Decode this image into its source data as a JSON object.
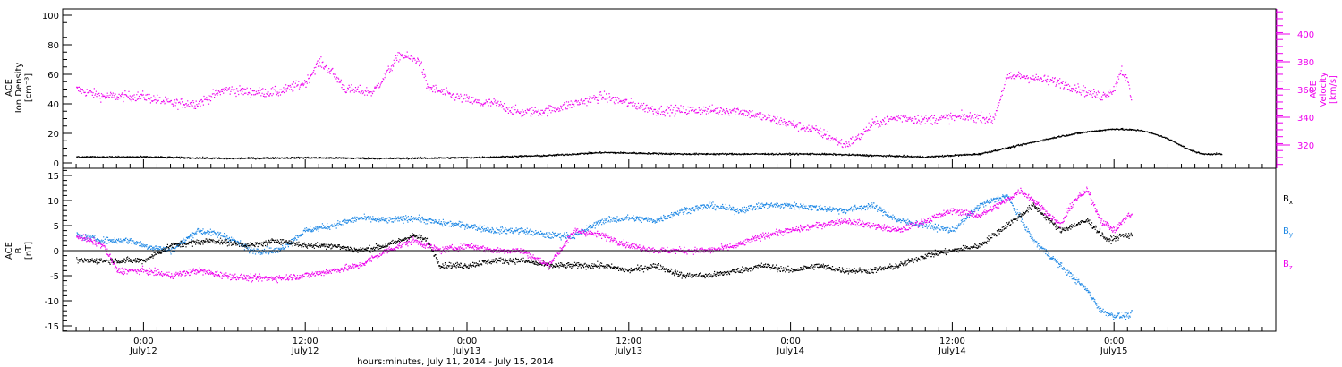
{
  "colors": {
    "black": "#000000",
    "magenta": "#ee00ee",
    "blue": "#1e88e5"
  },
  "chart_data": [
    {
      "type": "scatter",
      "panel": "top",
      "ylabel_left": [
        "ACE",
        "Ion Density",
        "[cm⁻³]"
      ],
      "ylabel_right": [
        "ACE",
        "Velocity",
        "[km/s]"
      ],
      "ylim_left": [
        0,
        100
      ],
      "yticks_left": [
        "0",
        "20",
        "40",
        "60",
        "80",
        "100"
      ],
      "ylim_right": [
        305,
        417
      ],
      "yticks_right": [
        "320",
        "340",
        "360",
        "380",
        "400"
      ],
      "x_range_hours": [
        -6,
        84
      ],
      "series": [
        {
          "axis": "left",
          "color": "#000000",
          "points": [
            [
              -5,
              4
            ],
            [
              0,
              4
            ],
            [
              6,
              3
            ],
            [
              12,
              3.5
            ],
            [
              18,
              3
            ],
            [
              24,
              3.5
            ],
            [
              30,
              5
            ],
            [
              34,
              7
            ],
            [
              40,
              6
            ],
            [
              46,
              6
            ],
            [
              50,
              6
            ],
            [
              54,
              5
            ],
            [
              58,
              4
            ],
            [
              62,
              6
            ],
            [
              64,
              10
            ],
            [
              66,
              14
            ],
            [
              68,
              18
            ],
            [
              70,
              21
            ],
            [
              72,
              23
            ],
            [
              74,
              22
            ],
            [
              75.5,
              18
            ],
            [
              76.5,
              14
            ],
            [
              77.5,
              9
            ],
            [
              78.5,
              6
            ],
            [
              80,
              6
            ]
          ]
        },
        {
          "axis": "right",
          "color": "#ee00ee",
          "points": [
            [
              -5,
              360
            ],
            [
              -3,
              355
            ],
            [
              0,
              355
            ],
            [
              2,
              350
            ],
            [
              4,
              350
            ],
            [
              6,
              360
            ],
            [
              8,
              358
            ],
            [
              10,
              358
            ],
            [
              12,
              365
            ],
            [
              13,
              380
            ],
            [
              14,
              372
            ],
            [
              15,
              360
            ],
            [
              17,
              358
            ],
            [
              19,
              385
            ],
            [
              20.5,
              380
            ],
            [
              21,
              362
            ],
            [
              23,
              355
            ],
            [
              25,
              350
            ],
            [
              26,
              350
            ],
            [
              28,
              343
            ],
            [
              30,
              345
            ],
            [
              32,
              350
            ],
            [
              34,
              355
            ],
            [
              36,
              350
            ],
            [
              38,
              345
            ],
            [
              40,
              345
            ],
            [
              42,
              345
            ],
            [
              44,
              345
            ],
            [
              46,
              340
            ],
            [
              48,
              335
            ],
            [
              50,
              330
            ],
            [
              51,
              325
            ],
            [
              52,
              320
            ],
            [
              53,
              325
            ],
            [
              54,
              335
            ],
            [
              56,
              340
            ],
            [
              58,
              338
            ],
            [
              60,
              340
            ],
            [
              62,
              340
            ],
            [
              63,
              338
            ],
            [
              64,
              368
            ],
            [
              65,
              370
            ],
            [
              66,
              368
            ],
            [
              68,
              365
            ],
            [
              70,
              358
            ],
            [
              71,
              355
            ],
            [
              72,
              360
            ],
            [
              72.5,
              375
            ],
            [
              73,
              365
            ],
            [
              73.3,
              350
            ]
          ]
        }
      ]
    },
    {
      "type": "scatter",
      "panel": "bottom",
      "ylabel_left": [
        "ACE",
        "B",
        "[nT]"
      ],
      "ylim": [
        -16,
        16
      ],
      "yticks": [
        "-15",
        "-10",
        "-5",
        "0",
        "5",
        "10",
        "15"
      ],
      "x_range_hours": [
        -6,
        84
      ],
      "xticks": [
        {
          "hours": 0,
          "time": "0:00",
          "date": "July12"
        },
        {
          "hours": 12,
          "time": "12:00",
          "date": "July12"
        },
        {
          "hours": 24,
          "time": "0:00",
          "date": "July13"
        },
        {
          "hours": 36,
          "time": "12:00",
          "date": "July13"
        },
        {
          "hours": 48,
          "time": "0:00",
          "date": "July14"
        },
        {
          "hours": 60,
          "time": "12:00",
          "date": "July14"
        },
        {
          "hours": 72,
          "time": "0:00",
          "date": "July15"
        }
      ],
      "xlabel": "hours:minutes, July 11, 2014 - July 15, 2014",
      "legend": [
        "Bx",
        "By",
        "Bz"
      ],
      "legend_position": "right",
      "series": [
        {
          "name": "Bx",
          "color": "#000000",
          "points": [
            [
              -5,
              -2
            ],
            [
              -2,
              -2
            ],
            [
              0,
              -2
            ],
            [
              2,
              1
            ],
            [
              5,
              2
            ],
            [
              8,
              1
            ],
            [
              10,
              2
            ],
            [
              12,
              1
            ],
            [
              14,
              1
            ],
            [
              16,
              0
            ],
            [
              18,
              1
            ],
            [
              20,
              3
            ],
            [
              21,
              2
            ],
            [
              22,
              -3
            ],
            [
              24,
              -3
            ],
            [
              26,
              -2
            ],
            [
              28,
              -2
            ],
            [
              30,
              -3
            ],
            [
              32,
              -3
            ],
            [
              34,
              -3
            ],
            [
              36,
              -4
            ],
            [
              38,
              -3
            ],
            [
              40,
              -5
            ],
            [
              42,
              -5
            ],
            [
              44,
              -4
            ],
            [
              46,
              -3
            ],
            [
              48,
              -4
            ],
            [
              50,
              -3
            ],
            [
              52,
              -4
            ],
            [
              54,
              -4
            ],
            [
              56,
              -3
            ],
            [
              58,
              -1
            ],
            [
              60,
              0
            ],
            [
              62,
              1
            ],
            [
              64,
              5
            ],
            [
              66,
              9
            ],
            [
              68,
              4
            ],
            [
              70,
              6
            ],
            [
              71.5,
              2
            ],
            [
              72.5,
              3
            ],
            [
              73.3,
              3
            ]
          ]
        },
        {
          "name": "By",
          "color": "#1e88e5",
          "points": [
            [
              -5,
              3
            ],
            [
              -3,
              2
            ],
            [
              -1,
              2
            ],
            [
              0,
              1
            ],
            [
              2,
              0
            ],
            [
              4,
              4
            ],
            [
              6,
              3
            ],
            [
              8,
              0
            ],
            [
              10,
              0
            ],
            [
              12,
              4
            ],
            [
              14,
              5
            ],
            [
              16,
              6.5
            ],
            [
              18,
              6
            ],
            [
              20,
              6.5
            ],
            [
              22,
              5.5
            ],
            [
              24,
              5
            ],
            [
              26,
              4
            ],
            [
              28,
              4
            ],
            [
              30,
              3
            ],
            [
              32,
              3
            ],
            [
              34,
              6
            ],
            [
              36,
              6.5
            ],
            [
              38,
              6
            ],
            [
              40,
              8
            ],
            [
              42,
              9
            ],
            [
              44,
              8
            ],
            [
              46,
              9
            ],
            [
              48,
              9
            ],
            [
              50,
              8.5
            ],
            [
              52,
              8
            ],
            [
              54,
              9
            ],
            [
              56,
              6
            ],
            [
              58,
              5
            ],
            [
              60,
              4
            ],
            [
              62,
              9
            ],
            [
              64,
              11
            ],
            [
              66,
              2
            ],
            [
              68,
              -3
            ],
            [
              70,
              -8
            ],
            [
              71,
              -12
            ],
            [
              72,
              -13
            ],
            [
              73,
              -13
            ],
            [
              73.3,
              -12.5
            ]
          ]
        },
        {
          "name": "Bz",
          "color": "#ee00ee",
          "points": [
            [
              -5,
              3
            ],
            [
              -3,
              1
            ],
            [
              -2,
              -4
            ],
            [
              0,
              -4
            ],
            [
              2,
              -5
            ],
            [
              4,
              -4
            ],
            [
              6,
              -5
            ],
            [
              8,
              -5.5
            ],
            [
              10,
              -5.5
            ],
            [
              12,
              -5
            ],
            [
              14,
              -4
            ],
            [
              16,
              -3
            ],
            [
              18,
              0
            ],
            [
              20,
              2
            ],
            [
              22,
              0
            ],
            [
              24,
              1
            ],
            [
              26,
              0
            ],
            [
              28,
              0
            ],
            [
              30,
              -3
            ],
            [
              32,
              4
            ],
            [
              34,
              3
            ],
            [
              36,
              1
            ],
            [
              38,
              0
            ],
            [
              40,
              0
            ],
            [
              42,
              0
            ],
            [
              44,
              1
            ],
            [
              46,
              3
            ],
            [
              48,
              4
            ],
            [
              50,
              5
            ],
            [
              52,
              6
            ],
            [
              54,
              5
            ],
            [
              56,
              4
            ],
            [
              58,
              6
            ],
            [
              60,
              8
            ],
            [
              62,
              7
            ],
            [
              64,
              10
            ],
            [
              65,
              12
            ],
            [
              66,
              10
            ],
            [
              68,
              5
            ],
            [
              69,
              10
            ],
            [
              70,
              12
            ],
            [
              71,
              6
            ],
            [
              72,
              4
            ],
            [
              73,
              7
            ],
            [
              73.3,
              7
            ]
          ]
        }
      ]
    }
  ]
}
